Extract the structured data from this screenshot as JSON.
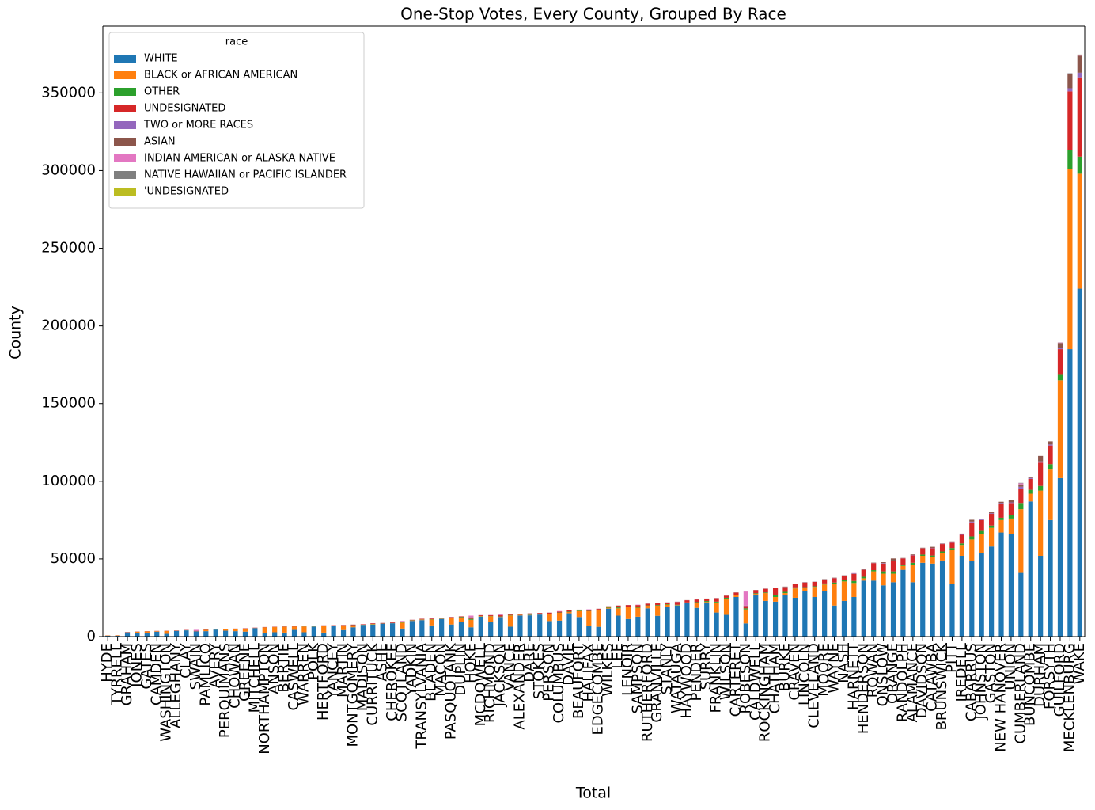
{
  "chart_data": {
    "type": "bar",
    "stacked": true,
    "title": "One-Stop Votes, Every County, Grouped By Race",
    "x_label": "Total",
    "y_label": "County",
    "legend_title": "race",
    "legend_position": "upper left",
    "categories": [
      "HYDE",
      "TYRRELL",
      "GRAHAM",
      "JONES",
      "GATES",
      "CAMDEN",
      "WASHINGTON",
      "ALLEGHANY",
      "CLAY",
      "SWAIN",
      "PAMLICO",
      "AVERY",
      "PERQUIMANS",
      "CHOWAN",
      "GREENE",
      "MITCHELL",
      "NORTHAMPTON",
      "ANSON",
      "BERTIE",
      "CASWELL",
      "WARREN",
      "POLK",
      "HERTFORD",
      "YANCEY",
      "MARTIN",
      "MONTGOMERY",
      "MADISON",
      "CURRITUCK",
      "ASHE",
      "CHEROKEE",
      "SCOTLAND",
      "YADKIN",
      "TRANSYLVANIA",
      "BLADEN",
      "MACON",
      "PASQUOTANK",
      "DUPLIN",
      "HOKE",
      "MCDOWELL",
      "RICHMOND",
      "JACKSON",
      "VANCE",
      "ALEXANDER",
      "DARE",
      "STOKES",
      "PERSON",
      "COLUMBUS",
      "DAVIE",
      "BEAUFORT",
      "HALIFAX",
      "EDGECOMBE",
      "WILKES",
      "LEE",
      "LENOIR",
      "SAMPSON",
      "RUTHERFORD",
      "GRANVILLE",
      "STANLY",
      "WATAUGA",
      "HAYWOOD",
      "PENDER",
      "SURRY",
      "FRANKLIN",
      "WILSON",
      "CARTERET",
      "ROBESON",
      "CALDWELL",
      "ROCKINGHAM",
      "CHATHAM",
      "BURKE",
      "CRAVEN",
      "LINCOLN",
      "CLEVELAND",
      "MOORE",
      "WAYNE",
      "NASH",
      "HARNETT",
      "HENDERSON",
      "ROWAN",
      "ONSLOW",
      "ORANGE",
      "RANDOLPH",
      "ALAMANCE",
      "DAVIDSON",
      "CATAWBA",
      "BRUNSWICK",
      "PITT",
      "IREDELL",
      "CABARRUS",
      "JOHNSTON",
      "GASTON",
      "NEW HANOVER",
      "UNION",
      "CUMBERLAND",
      "BUNCOMBE",
      "DURHAM",
      "FORSYTH",
      "GUILFORD",
      "MECKLENBURG",
      "WAKE"
    ],
    "series": [
      {
        "name": "WHITE",
        "color": "#1f77b4",
        "values": [
          500,
          550,
          2700,
          2300,
          2400,
          3100,
          1800,
          3600,
          4000,
          3300,
          3500,
          4500,
          3800,
          3500,
          3200,
          5400,
          2400,
          2800,
          2600,
          4300,
          2800,
          6400,
          2600,
          6900,
          4200,
          6000,
          7500,
          7700,
          8300,
          8600,
          5200,
          10100,
          10600,
          7200,
          11300,
          7800,
          9200,
          6000,
          12800,
          9400,
          12600,
          6400,
          13600,
          13700,
          14200,
          10000,
          10300,
          15000,
          12600,
          6900,
          6300,
          18000,
          13500,
          11300,
          12800,
          18200,
          13400,
          19000,
          20000,
          21500,
          18500,
          21800,
          15500,
          14000,
          25500,
          8500,
          26500,
          23000,
          22500,
          26500,
          25000,
          29500,
          25500,
          29500,
          20000,
          23000,
          25500,
          36000,
          36000,
          33000,
          35000,
          43000,
          35000,
          47500,
          47000,
          49000,
          34000,
          52000,
          48500,
          54000,
          58000,
          67000,
          66000,
          41000,
          87000,
          52000,
          75000,
          102000,
          185000,
          224000
        ]
      },
      {
        "name": "BLACK or AFRICAN AMERICAN",
        "color": "#ff7f0e",
        "values": [
          200,
          250,
          20,
          800,
          900,
          300,
          1800,
          50,
          20,
          30,
          800,
          50,
          1000,
          1400,
          1800,
          20,
          3500,
          3300,
          3700,
          2100,
          3700,
          150,
          4300,
          30,
          3000,
          1100,
          30,
          300,
          30,
          50,
          3800,
          200,
          300,
          3800,
          80,
          4000,
          3000,
          4800,
          300,
          3700,
          150,
          7200,
          400,
          150,
          300,
          4600,
          5000,
          800,
          3900,
          9400,
          10900,
          600,
          4700,
          7700,
          5800,
          1700,
          6500,
          1600,
          200,
          200,
          3300,
          500,
          6500,
          10500,
          1000,
          9000,
          1000,
          5000,
          3000,
          1500,
          6000,
          1800,
          6500,
          4000,
          14000,
          12500,
          9000,
          1500,
          6000,
          7500,
          5500,
          2500,
          11000,
          4500,
          4000,
          5000,
          22000,
          7000,
          14000,
          12000,
          12000,
          8000,
          10000,
          41000,
          5000,
          42000,
          33000,
          63000,
          116000,
          74000
        ]
      },
      {
        "name": "OTHER",
        "color": "#2ca02c",
        "values": [
          20,
          20,
          40,
          40,
          40,
          60,
          40,
          80,
          50,
          100,
          60,
          80,
          50,
          50,
          150,
          80,
          60,
          60,
          50,
          60,
          80,
          80,
          80,
          100,
          60,
          200,
          100,
          150,
          100,
          100,
          200,
          200,
          150,
          200,
          200,
          200,
          400,
          600,
          200,
          200,
          200,
          300,
          100,
          300,
          100,
          200,
          200,
          300,
          300,
          200,
          200,
          300,
          600,
          300,
          700,
          200,
          400,
          300,
          300,
          300,
          400,
          600,
          500,
          500,
          300,
          700,
          400,
          400,
          1000,
          800,
          700,
          500,
          400,
          700,
          800,
          700,
          1300,
          1000,
          800,
          1500,
          1500,
          800,
          1500,
          800,
          1200,
          800,
          1000,
          1000,
          2000,
          2000,
          1500,
          1500,
          2000,
          4000,
          2500,
          3000,
          3000,
          4000,
          12000,
          11000
        ]
      },
      {
        "name": "UNDESIGNATED",
        "color": "#d62728",
        "values": [
          60,
          60,
          200,
          150,
          150,
          200,
          150,
          220,
          200,
          300,
          200,
          250,
          200,
          200,
          200,
          250,
          200,
          200,
          200,
          300,
          300,
          400,
          250,
          300,
          250,
          400,
          300,
          400,
          350,
          400,
          400,
          300,
          400,
          400,
          500,
          500,
          400,
          900,
          500,
          500,
          800,
          600,
          600,
          800,
          600,
          600,
          600,
          800,
          500,
          500,
          500,
          600,
          1100,
          1000,
          1000,
          1100,
          1200,
          1000,
          1800,
          1400,
          1700,
          1500,
          2200,
          1300,
          1500,
          1500,
          2000,
          2400,
          4700,
          3000,
          2000,
          3000,
          2800,
          2500,
          2800,
          3000,
          4500,
          4500,
          4500,
          5000,
          6500,
          4000,
          4800,
          4000,
          4700,
          4800,
          3500,
          5500,
          9000,
          7000,
          7500,
          9000,
          8000,
          9000,
          7000,
          15000,
          12000,
          16000,
          38000,
          51000
        ]
      },
      {
        "name": "TWO or MORE RACES",
        "color": "#9467bd",
        "values": [
          5,
          5,
          10,
          10,
          10,
          15,
          10,
          10,
          10,
          20,
          10,
          10,
          10,
          10,
          10,
          10,
          10,
          10,
          10,
          10,
          10,
          20,
          20,
          10,
          10,
          20,
          20,
          20,
          20,
          30,
          30,
          20,
          20,
          30,
          30,
          40,
          20,
          100,
          20,
          30,
          50,
          30,
          20,
          30,
          20,
          30,
          30,
          30,
          30,
          30,
          30,
          40,
          60,
          40,
          40,
          50,
          50,
          50,
          100,
          50,
          50,
          50,
          60,
          60,
          50,
          200,
          50,
          60,
          100,
          100,
          100,
          100,
          100,
          100,
          100,
          100,
          200,
          100,
          100,
          300,
          300,
          100,
          200,
          100,
          200,
          200,
          300,
          300,
          500,
          400,
          400,
          500,
          400,
          1500,
          600,
          800,
          700,
          1000,
          2000,
          3000
        ]
      },
      {
        "name": "ASIAN",
        "color": "#8c564b",
        "values": [
          5,
          5,
          10,
          10,
          10,
          20,
          10,
          10,
          10,
          10,
          10,
          10,
          10,
          10,
          10,
          10,
          10,
          10,
          10,
          10,
          10,
          20,
          20,
          10,
          10,
          50,
          10,
          40,
          20,
          20,
          30,
          20,
          30,
          20,
          40,
          60,
          20,
          100,
          30,
          30,
          100,
          30,
          30,
          60,
          20,
          30,
          20,
          50,
          30,
          30,
          30,
          50,
          100,
          50,
          30,
          40,
          50,
          100,
          100,
          50,
          50,
          50,
          60,
          80,
          100,
          100,
          100,
          60,
          300,
          300,
          300,
          150,
          100,
          200,
          200,
          150,
          200,
          300,
          200,
          600,
          1500,
          200,
          400,
          300,
          700,
          200,
          500,
          500,
          1200,
          500,
          600,
          800,
          1500,
          1500,
          700,
          3500,
          2000,
          3000,
          9000,
          11000
        ]
      },
      {
        "name": "INDIAN AMERICAN or ALASKA NATIVE",
        "color": "#e377c2",
        "values": [
          0,
          0,
          0,
          0,
          0,
          0,
          0,
          0,
          0,
          600,
          0,
          0,
          0,
          0,
          0,
          0,
          0,
          0,
          0,
          0,
          0,
          0,
          0,
          0,
          0,
          0,
          0,
          0,
          0,
          0,
          400,
          0,
          0,
          100,
          0,
          0,
          0,
          1000,
          0,
          100,
          400,
          0,
          0,
          0,
          0,
          0,
          300,
          0,
          0,
          500,
          0,
          0,
          0,
          0,
          200,
          0,
          0,
          0,
          0,
          0,
          0,
          0,
          0,
          0,
          0,
          9000,
          0,
          0,
          0,
          0,
          0,
          0,
          0,
          0,
          0,
          0,
          200,
          0,
          0,
          0,
          0,
          0,
          0,
          0,
          0,
          0,
          0,
          0,
          0,
          0,
          0,
          0,
          0,
          700,
          0,
          0,
          0,
          300,
          500,
          500
        ]
      },
      {
        "name": "NATIVE HAWAIIAN or PACIFIC ISLANDER",
        "color": "#7f7f7f",
        "values": [
          0,
          0,
          0,
          0,
          0,
          0,
          0,
          0,
          0,
          0,
          0,
          0,
          0,
          0,
          0,
          0,
          0,
          0,
          0,
          0,
          0,
          0,
          0,
          0,
          0,
          0,
          0,
          0,
          0,
          0,
          0,
          0,
          0,
          0,
          0,
          0,
          0,
          0,
          0,
          0,
          0,
          0,
          0,
          0,
          0,
          0,
          0,
          0,
          0,
          0,
          0,
          0,
          0,
          0,
          0,
          0,
          0,
          0,
          0,
          0,
          0,
          0,
          0,
          0,
          0,
          0,
          0,
          0,
          0,
          0,
          0,
          0,
          0,
          0,
          0,
          0,
          0,
          0,
          0,
          0,
          0,
          0,
          0,
          0,
          0,
          0,
          0,
          0,
          0,
          0,
          0,
          0,
          0,
          300,
          0,
          0,
          0,
          100,
          200,
          200
        ]
      },
      {
        "name": "'UNDESIGNATED",
        "color": "#bcbd22",
        "values": [
          0,
          0,
          0,
          0,
          0,
          0,
          0,
          0,
          0,
          0,
          0,
          0,
          0,
          0,
          0,
          0,
          0,
          0,
          0,
          0,
          0,
          0,
          0,
          0,
          0,
          0,
          0,
          0,
          0,
          0,
          0,
          0,
          0,
          0,
          0,
          0,
          0,
          0,
          0,
          0,
          0,
          0,
          0,
          0,
          0,
          0,
          0,
          0,
          0,
          0,
          0,
          0,
          0,
          0,
          0,
          0,
          0,
          0,
          0,
          0,
          0,
          0,
          0,
          0,
          0,
          0,
          0,
          0,
          0,
          0,
          0,
          0,
          0,
          0,
          0,
          0,
          0,
          0,
          0,
          0,
          0,
          0,
          0,
          0,
          0,
          0,
          0,
          0,
          0,
          0,
          0,
          0,
          0,
          0,
          0,
          0,
          0,
          0,
          0,
          20
        ]
      }
    ],
    "ylim": [
      0,
      393000
    ],
    "yticks": [
      0,
      50000,
      100000,
      150000,
      200000,
      250000,
      300000,
      350000
    ],
    "grid": false
  }
}
